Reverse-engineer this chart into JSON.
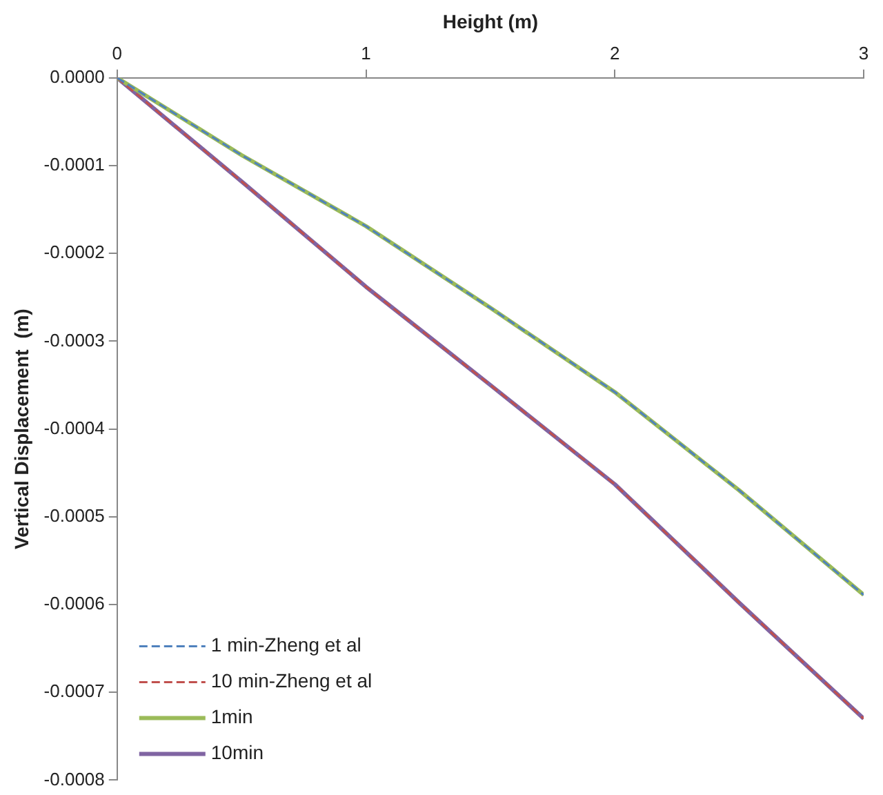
{
  "chart_data": {
    "type": "line",
    "xlabel": "Height (m)",
    "ylabel": "Vertical Displacement  (m)",
    "x": [
      0,
      0.5,
      1,
      1.5,
      2,
      2.5,
      3
    ],
    "series": [
      {
        "name": "1 min-Zheng et al",
        "color": "#4f81bd",
        "line_style": "dashed",
        "values": [
          0,
          -8.8e-05,
          -0.000169,
          -0.000262,
          -0.000358,
          -0.00047,
          -0.000589
        ]
      },
      {
        "name": "10 min-Zheng et al",
        "color": "#c0504d",
        "line_style": "dashed",
        "values": [
          0,
          -0.000118,
          -0.000238,
          -0.00035,
          -0.000463,
          -0.000598,
          -0.00073
        ]
      },
      {
        "name": "1min",
        "color": "#9bbb59",
        "line_style": "solid",
        "values": [
          0,
          -8.8e-05,
          -0.000169,
          -0.000262,
          -0.000358,
          -0.00047,
          -0.000589
        ]
      },
      {
        "name": "10min",
        "color": "#8064a2",
        "line_style": "solid",
        "values": [
          0,
          -0.000118,
          -0.000238,
          -0.00035,
          -0.000463,
          -0.000598,
          -0.00073
        ]
      }
    ],
    "xlim": [
      0,
      3
    ],
    "xticks": [
      0,
      1,
      2,
      3
    ],
    "ylim": [
      -0.0008,
      0
    ],
    "yticks": [
      {
        "value": 0,
        "label": "0.0000"
      },
      {
        "value": -0.0001,
        "label": "-0.0001"
      },
      {
        "value": -0.0002,
        "label": "-0.0002"
      },
      {
        "value": -0.0003,
        "label": "-0.0003"
      },
      {
        "value": -0.0004,
        "label": "-0.0004"
      },
      {
        "value": -0.0005,
        "label": "-0.0005"
      },
      {
        "value": -0.0006,
        "label": "-0.0006"
      },
      {
        "value": -0.0007,
        "label": "-0.0007"
      },
      {
        "value": -0.0008,
        "label": "-0.0008"
      }
    ],
    "grid": false,
    "legend": "bottom left",
    "marker": "none"
  }
}
